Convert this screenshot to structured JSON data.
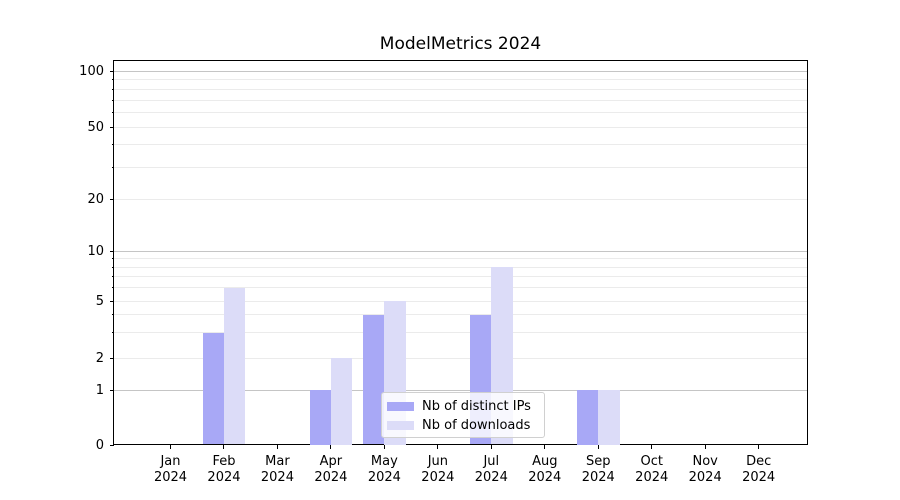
{
  "chart_data": {
    "type": "bar",
    "title": "ModelMetrics 2024",
    "categories": [
      "Jan",
      "Feb",
      "Mar",
      "Apr",
      "May",
      "Jun",
      "Jul",
      "Aug",
      "Sep",
      "Oct",
      "Nov",
      "Dec"
    ],
    "category_sublabel": "2024",
    "series": [
      {
        "name": "Nb of distinct IPs",
        "color": "#a8a8f6",
        "values": [
          0,
          3,
          0,
          1,
          4,
          0,
          4,
          0,
          1,
          0,
          0,
          0
        ]
      },
      {
        "name": "Nb of downloads",
        "color": "#dcdcf8",
        "values": [
          0,
          6,
          0,
          2,
          5,
          0,
          8,
          0,
          1,
          0,
          0,
          0
        ]
      }
    ],
    "y_axis": {
      "scale": "symlog",
      "tick_labels": [
        "0",
        "1",
        "2",
        "5",
        "10",
        "20",
        "50",
        "100"
      ],
      "tick_values": [
        0,
        1,
        2,
        5,
        10,
        20,
        50,
        100
      ],
      "major_gridlines": [
        1,
        10,
        100
      ],
      "minor_gridlines": [
        2,
        3,
        4,
        5,
        6,
        7,
        8,
        9,
        20,
        30,
        40,
        50,
        60,
        70,
        80,
        90
      ],
      "ylim": [
        0,
        115
      ]
    },
    "legend": {
      "position": "lower center"
    },
    "grid": true,
    "colors": {
      "grid_major": "#c5c5c5",
      "grid_minor": "#ebebeb",
      "axis": "#000000",
      "text": "#000000",
      "background": "#ffffff"
    }
  }
}
